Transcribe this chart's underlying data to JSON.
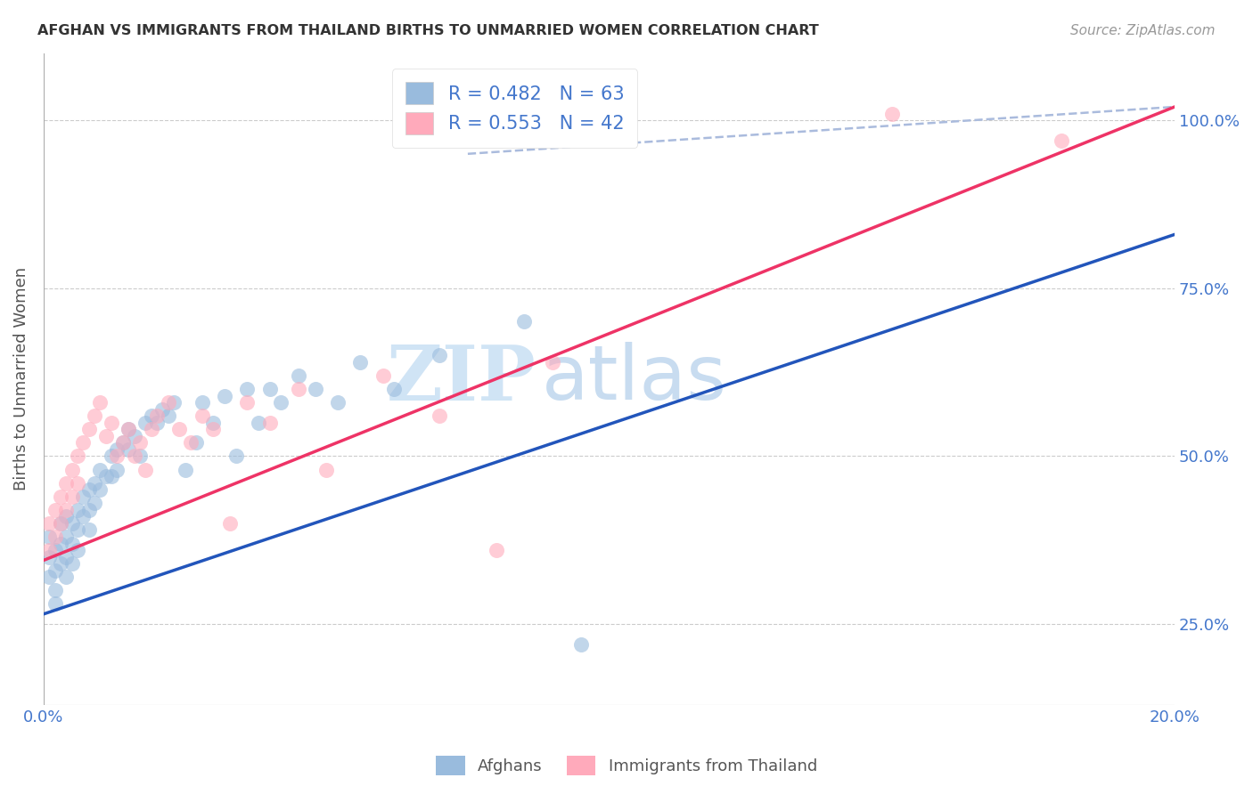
{
  "title": "AFGHAN VS IMMIGRANTS FROM THAILAND BIRTHS TO UNMARRIED WOMEN CORRELATION CHART",
  "source": "Source: ZipAtlas.com",
  "ylabel": "Births to Unmarried Women",
  "legend_label1": "Afghans",
  "legend_label2": "Immigrants from Thailand",
  "R1": 0.482,
  "N1": 63,
  "R2": 0.553,
  "N2": 42,
  "color1": "#99BBDD",
  "color2": "#FFAABB",
  "line_color1": "#2255BB",
  "line_color2": "#EE3366",
  "xlim": [
    0.0,
    0.2
  ],
  "ylim": [
    0.13,
    1.1
  ],
  "xticks": [
    0.0,
    0.05,
    0.1,
    0.15,
    0.2
  ],
  "xtick_labels": [
    "0.0%",
    "",
    "",
    "",
    "20.0%"
  ],
  "yticks": [
    0.25,
    0.5,
    0.75,
    1.0
  ],
  "ytick_labels": [
    "25.0%",
    "50.0%",
    "75.0%",
    "100.0%"
  ],
  "blue_line_x0": 0.0,
  "blue_line_y0": 0.265,
  "blue_line_x1": 0.2,
  "blue_line_y1": 0.83,
  "pink_line_x0": 0.0,
  "pink_line_y0": 0.345,
  "pink_line_x1": 0.2,
  "pink_line_y1": 1.02,
  "dash_line_x0": 0.075,
  "dash_line_y0": 0.95,
  "dash_line_x1": 0.2,
  "dash_line_y1": 1.02,
  "afghans_x": [
    0.001,
    0.001,
    0.001,
    0.002,
    0.002,
    0.002,
    0.002,
    0.003,
    0.003,
    0.003,
    0.004,
    0.004,
    0.004,
    0.004,
    0.005,
    0.005,
    0.005,
    0.006,
    0.006,
    0.006,
    0.007,
    0.007,
    0.008,
    0.008,
    0.008,
    0.009,
    0.009,
    0.01,
    0.01,
    0.011,
    0.012,
    0.012,
    0.013,
    0.013,
    0.014,
    0.015,
    0.015,
    0.016,
    0.017,
    0.018,
    0.019,
    0.02,
    0.021,
    0.022,
    0.023,
    0.025,
    0.027,
    0.028,
    0.03,
    0.032,
    0.034,
    0.036,
    0.038,
    0.04,
    0.042,
    0.045,
    0.048,
    0.052,
    0.056,
    0.062,
    0.07,
    0.085,
    0.095
  ],
  "afghans_y": [
    0.38,
    0.35,
    0.32,
    0.33,
    0.36,
    0.3,
    0.28,
    0.37,
    0.34,
    0.4,
    0.38,
    0.35,
    0.32,
    0.41,
    0.4,
    0.37,
    0.34,
    0.42,
    0.39,
    0.36,
    0.44,
    0.41,
    0.45,
    0.42,
    0.39,
    0.46,
    0.43,
    0.48,
    0.45,
    0.47,
    0.5,
    0.47,
    0.51,
    0.48,
    0.52,
    0.54,
    0.51,
    0.53,
    0.5,
    0.55,
    0.56,
    0.55,
    0.57,
    0.56,
    0.58,
    0.48,
    0.52,
    0.58,
    0.55,
    0.59,
    0.5,
    0.6,
    0.55,
    0.6,
    0.58,
    0.62,
    0.6,
    0.58,
    0.64,
    0.6,
    0.65,
    0.7,
    0.22
  ],
  "thailand_x": [
    0.001,
    0.001,
    0.002,
    0.002,
    0.003,
    0.003,
    0.004,
    0.004,
    0.005,
    0.005,
    0.006,
    0.006,
    0.007,
    0.008,
    0.009,
    0.01,
    0.011,
    0.012,
    0.013,
    0.014,
    0.015,
    0.016,
    0.017,
    0.018,
    0.019,
    0.02,
    0.022,
    0.024,
    0.026,
    0.028,
    0.03,
    0.033,
    0.036,
    0.04,
    0.045,
    0.05,
    0.06,
    0.07,
    0.08,
    0.09,
    0.15,
    0.18
  ],
  "thailand_y": [
    0.4,
    0.36,
    0.42,
    0.38,
    0.44,
    0.4,
    0.46,
    0.42,
    0.48,
    0.44,
    0.5,
    0.46,
    0.52,
    0.54,
    0.56,
    0.58,
    0.53,
    0.55,
    0.5,
    0.52,
    0.54,
    0.5,
    0.52,
    0.48,
    0.54,
    0.56,
    0.58,
    0.54,
    0.52,
    0.56,
    0.54,
    0.4,
    0.58,
    0.55,
    0.6,
    0.48,
    0.62,
    0.56,
    0.36,
    0.64,
    1.01,
    0.97
  ],
  "watermark_zip": "ZIP",
  "watermark_atlas": "atlas",
  "background_color": "#FFFFFF",
  "grid_color": "#CCCCCC",
  "title_color": "#333333",
  "axis_color": "#4477CC",
  "source_color": "#999999"
}
